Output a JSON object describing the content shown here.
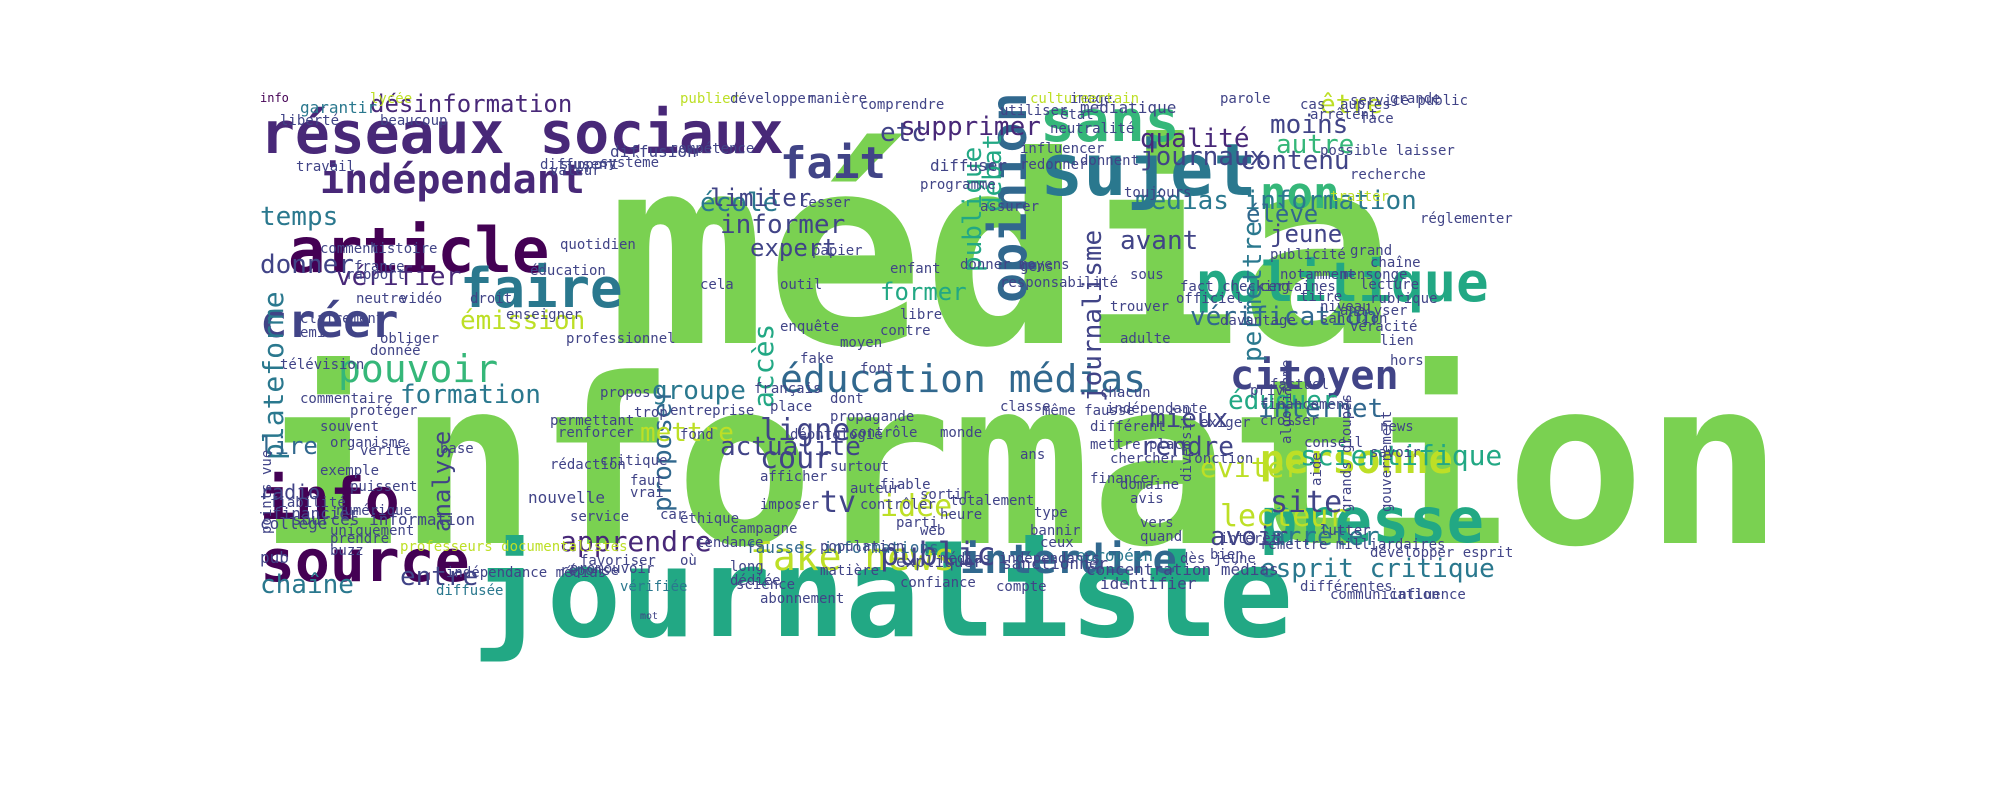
{
  "image": {
    "description_free": true
  },
  "colors": {
    "background": "#ffffff",
    "palette": [
      "#7ad151",
      "#22a884",
      "#2a788e",
      "#414487",
      "#440154",
      "#bddf26",
      "#35b779",
      "#fde725",
      "#31688e",
      "#482878"
    ]
  },
  "words": [
    {
      "text": "information",
      "color": "#7ad151"
    },
    {
      "text": "média",
      "color": "#7ad151"
    },
    {
      "text": "journaliste",
      "color": "#22a884"
    },
    {
      "text": "réseaux sociaux",
      "color": "#482878"
    },
    {
      "text": "sujet",
      "color": "#2a788e"
    },
    {
      "text": "article",
      "color": "#440154"
    },
    {
      "text": "politique",
      "color": "#22a884"
    },
    {
      "text": "presse",
      "color": "#22a884"
    },
    {
      "text": "info",
      "color": "#440154"
    },
    {
      "text": "source",
      "color": "#440154"
    },
    {
      "text": "sans",
      "color": "#35b779"
    },
    {
      "text": "faire",
      "color": "#2a788e"
    },
    {
      "text": "opinion",
      "color": "#31688e"
    },
    {
      "text": "fait",
      "color": "#414487"
    },
    {
      "text": "non",
      "color": "#35b779"
    },
    {
      "text": "créer",
      "color": "#414487"
    },
    {
      "text": "indépendant",
      "color": "#482878"
    },
    {
      "text": "pouvoir",
      "color": "#35b779"
    },
    {
      "text": "éducation médias",
      "color": "#31688e"
    },
    {
      "text": "fake news",
      "color": "#bddf26"
    },
    {
      "text": "interdire",
      "color": "#31688e"
    },
    {
      "text": "citoyen",
      "color": "#414487"
    },
    {
      "text": "personne",
      "color": "#bddf26"
    },
    {
      "text": "désinformation",
      "color": "#482878"
    },
    {
      "text": "journaux",
      "color": "#414487"
    },
    {
      "text": "qualité",
      "color": "#482878"
    },
    {
      "text": "moins",
      "color": "#414487"
    },
    {
      "text": "contenu",
      "color": "#414487"
    },
    {
      "text": "supprimer",
      "color": "#482878"
    },
    {
      "text": "médias information",
      "color": "#2a788e"
    },
    {
      "text": "vérification",
      "color": "#31688e"
    },
    {
      "text": "école",
      "color": "#2a788e"
    },
    {
      "text": "temps",
      "color": "#2a788e"
    },
    {
      "text": "informer",
      "color": "#414487"
    },
    {
      "text": "donner",
      "color": "#414487"
    },
    {
      "text": "expert",
      "color": "#414487"
    },
    {
      "text": "vérifier",
      "color": "#482878"
    },
    {
      "text": "émission",
      "color": "#bddf26"
    },
    {
      "text": "autre",
      "color": "#35b779"
    },
    {
      "text": "élève",
      "color": "#31688e"
    },
    {
      "text": "avant",
      "color": "#414487"
    },
    {
      "text": "jeune",
      "color": "#414487"
    },
    {
      "text": "éduquer",
      "color": "#22a884"
    },
    {
      "text": "internet",
      "color": "#31688e"
    },
    {
      "text": "mieux",
      "color": "#414487"
    },
    {
      "text": "éviter",
      "color": "#bddf26"
    },
    {
      "text": "ligne",
      "color": "#414487"
    },
    {
      "text": "cour",
      "color": "#414487"
    },
    {
      "text": "groupe",
      "color": "#2a788e"
    },
    {
      "text": "formation",
      "color": "#2a788e"
    },
    {
      "text": "plateforme",
      "color": "#2a788e"
    },
    {
      "text": "analyse",
      "color": "#414487"
    },
    {
      "text": "proposer",
      "color": "#31688e"
    },
    {
      "text": "mettre",
      "color": "#bddf26"
    },
    {
      "text": "actualité",
      "color": "#414487"
    },
    {
      "text": "idée",
      "color": "#bddf26"
    },
    {
      "text": "lecteur",
      "color": "#bddf26"
    },
    {
      "text": "site",
      "color": "#414487"
    },
    {
      "text": "avoir",
      "color": "#414487"
    },
    {
      "text": "scientifique",
      "color": "#22a884"
    },
    {
      "text": "esprit critique",
      "color": "#2a788e"
    },
    {
      "text": "arrêter",
      "color": "#2a788e"
    },
    {
      "text": "apprendre",
      "color": "#482878"
    },
    {
      "text": "public",
      "color": "#414487"
    },
    {
      "text": "lire",
      "color": "#31688e"
    },
    {
      "text": "chaîne",
      "color": "#2a788e"
    },
    {
      "text": "entre",
      "color": "#414487"
    },
    {
      "text": "tv",
      "color": "#414487"
    },
    {
      "text": "rendre",
      "color": "#414487"
    },
    {
      "text": "débat",
      "color": "#22a884"
    },
    {
      "text": "publique",
      "color": "#22a884"
    },
    {
      "text": "permettre",
      "color": "#2a788e"
    },
    {
      "text": "journalisme",
      "color": "#414487"
    },
    {
      "text": "accès",
      "color": "#22a884"
    },
    {
      "text": "etc",
      "color": "#414487"
    },
    {
      "text": "être",
      "color": "#bddf26"
    },
    {
      "text": "limiter",
      "color": "#414487"
    },
    {
      "text": "former",
      "color": "#22a884"
    },
    {
      "text": "radio",
      "color": "#414487"
    },
    {
      "text": "info",
      "color": "#440154"
    },
    {
      "text": "sources information",
      "color": "#414487"
    },
    {
      "text": "professeurs documentalistes",
      "color": "#bddf26"
    },
    {
      "text": "fausses informations",
      "color": "#31688e"
    },
    {
      "text": "concentration médias",
      "color": "#414487"
    },
    {
      "text": "confiance",
      "color": "#414487"
    },
    {
      "text": "compte",
      "color": "#414487"
    },
    {
      "text": "identifier",
      "color": "#414487"
    },
    {
      "text": "science",
      "color": "#414487"
    },
    {
      "text": "vérifiée",
      "color": "#2a788e"
    },
    {
      "text": "diffusée",
      "color": "#2a788e"
    },
    {
      "text": "financier",
      "color": "#414487"
    },
    {
      "text": "collège",
      "color": "#414487"
    },
    {
      "text": "pub",
      "color": "#414487"
    },
    {
      "text": "expliquer",
      "color": "#414487"
    },
    {
      "text": "sanctionner",
      "color": "#414487"
    },
    {
      "text": "européen",
      "color": "#2a788e"
    },
    {
      "text": "nouvelle",
      "color": "#414487"
    },
    {
      "text": "mot",
      "color": "#414487"
    },
    {
      "text": "garantir",
      "color": "#2a788e"
    },
    {
      "text": "lycée",
      "color": "#bddf26"
    },
    {
      "text": "publier",
      "color": "#bddf26"
    },
    {
      "text": "développer",
      "color": "#414487"
    },
    {
      "text": "manière",
      "color": "#414487"
    },
    {
      "text": "diffuser",
      "color": "#414487"
    },
    {
      "text": "programme",
      "color": "#414487"
    },
    {
      "text": "utiliser",
      "color": "#414487"
    },
    {
      "text": "culture",
      "color": "#bddf26"
    },
    {
      "text": "parole",
      "color": "#414487"
    },
    {
      "text": "grande",
      "color": "#414487"
    },
    {
      "text": "service public",
      "color": "#414487"
    },
    {
      "text": "arrêtent",
      "color": "#414487"
    },
    {
      "text": "possible laisser",
      "color": "#414487"
    },
    {
      "text": "diffusion",
      "color": "#414487"
    },
    {
      "text": "travail",
      "color": "#414487"
    },
    {
      "text": "comprendre",
      "color": "#414487"
    },
    {
      "text": "médiatique",
      "color": "#414487"
    },
    {
      "text": "image",
      "color": "#414487"
    },
    {
      "text": "certain",
      "color": "#bddf26"
    },
    {
      "text": "état",
      "color": "#414487"
    },
    {
      "text": "cesser",
      "color": "#414487"
    },
    {
      "text": "assurer",
      "color": "#414487"
    },
    {
      "text": "toujours",
      "color": "#414487"
    },
    {
      "text": "recherche",
      "color": "#414487"
    },
    {
      "text": "traiter",
      "color": "#bddf26"
    },
    {
      "text": "grand",
      "color": "#414487"
    },
    {
      "text": "notamment",
      "color": "#414487"
    },
    {
      "text": "mensonge",
      "color": "#414487"
    },
    {
      "text": "niveau",
      "color": "#414487"
    },
    {
      "text": "véracité",
      "color": "#414487"
    },
    {
      "text": "lien",
      "color": "#414487"
    },
    {
      "text": "aide",
      "color": "#414487"
    },
    {
      "text": "fiable",
      "color": "#414487"
    },
    {
      "text": "surtout",
      "color": "#414487"
    },
    {
      "text": "contrôler",
      "color": "#414487"
    },
    {
      "text": "auteur",
      "color": "#414487"
    },
    {
      "text": "heure",
      "color": "#414487"
    },
    {
      "text": "web",
      "color": "#414487"
    },
    {
      "text": "quand",
      "color": "#414487"
    },
    {
      "text": "vers",
      "color": "#414487"
    },
    {
      "text": "dès jeune",
      "color": "#414487"
    },
    {
      "text": "ceux",
      "color": "#414487"
    },
    {
      "text": "type",
      "color": "#414487"
    },
    {
      "text": "bien",
      "color": "#414487"
    },
    {
      "text": "lutter",
      "color": "#414487"
    },
    {
      "text": "savoir",
      "color": "#414487"
    },
    {
      "text": "gouvernement",
      "color": "#414487"
    },
    {
      "text": "grands groupes",
      "color": "#414487"
    },
    {
      "text": "financement",
      "color": "#414487"
    },
    {
      "text": "exiger",
      "color": "#414487"
    },
    {
      "text": "privé",
      "color": "#414487"
    },
    {
      "text": "algorithme",
      "color": "#414487"
    },
    {
      "text": "diversité",
      "color": "#414487"
    },
    {
      "text": "factuel",
      "color": "#414487"
    },
    {
      "text": "hors",
      "color": "#414487"
    },
    {
      "text": "news",
      "color": "#414487"
    },
    {
      "text": "emi",
      "color": "#414487"
    },
    {
      "text": "télévision",
      "color": "#414487"
    },
    {
      "text": "obliger",
      "color": "#414487"
    },
    {
      "text": "donnée",
      "color": "#414487"
    },
    {
      "text": "commentaire",
      "color": "#414487"
    },
    {
      "text": "protéger",
      "color": "#414487"
    },
    {
      "text": "souvent",
      "color": "#414487"
    },
    {
      "text": "organisme",
      "color": "#414487"
    },
    {
      "text": "exemple",
      "color": "#414487"
    },
    {
      "text": "puissent",
      "color": "#414487"
    },
    {
      "text": "numérique",
      "color": "#414487"
    },
    {
      "text": "uniquement",
      "color": "#414487"
    },
    {
      "text": "points vue",
      "color": "#414487"
    },
    {
      "text": "vidéo",
      "color": "#414487"
    },
    {
      "text": "droit",
      "color": "#414487"
    },
    {
      "text": "enseigner",
      "color": "#414487"
    },
    {
      "text": "neutre",
      "color": "#414487"
    },
    {
      "text": "france",
      "color": "#414487"
    },
    {
      "text": "éducation",
      "color": "#414487"
    },
    {
      "text": "professionnel",
      "color": "#414487"
    },
    {
      "text": "outil",
      "color": "#414487"
    },
    {
      "text": "papier",
      "color": "#414487"
    },
    {
      "text": "libre",
      "color": "#414487"
    },
    {
      "text": "moyen",
      "color": "#414487"
    },
    {
      "text": "contre",
      "color": "#414487"
    },
    {
      "text": "donner moyens",
      "color": "#414487"
    },
    {
      "text": "place",
      "color": "#414487"
    },
    {
      "text": "dont",
      "color": "#414487"
    },
    {
      "text": "propos",
      "color": "#414487"
    },
    {
      "text": "trop",
      "color": "#414487"
    },
    {
      "text": "français",
      "color": "#414487"
    },
    {
      "text": "propagande",
      "color": "#414487"
    },
    {
      "text": "contrôle",
      "color": "#414487"
    },
    {
      "text": "entreprise",
      "color": "#414487"
    },
    {
      "text": "monde",
      "color": "#414487"
    },
    {
      "text": "classe",
      "color": "#414487"
    },
    {
      "text": "même fausse",
      "color": "#414487"
    },
    {
      "text": "différent",
      "color": "#414487"
    },
    {
      "text": "indépendante",
      "color": "#414487"
    },
    {
      "text": "mettre place",
      "color": "#414487"
    },
    {
      "text": "chacun",
      "color": "#414487"
    },
    {
      "text": "conseil",
      "color": "#414487"
    },
    {
      "text": "adulte",
      "color": "#414487"
    },
    {
      "text": "trouver",
      "color": "#414487"
    },
    {
      "text": "domaine",
      "color": "#414487"
    },
    {
      "text": "financer",
      "color": "#414487"
    },
    {
      "text": "ans",
      "color": "#414487"
    },
    {
      "text": "déontologie",
      "color": "#414487"
    },
    {
      "text": "rédaction",
      "color": "#414487"
    },
    {
      "text": "faut",
      "color": "#414487"
    },
    {
      "text": "vrai",
      "color": "#414487"
    },
    {
      "text": "critique",
      "color": "#414487"
    },
    {
      "text": "renforcer",
      "color": "#414487"
    },
    {
      "text": "fond",
      "color": "#414487"
    },
    {
      "text": "permettant",
      "color": "#414487"
    },
    {
      "text": "afficher",
      "color": "#414487"
    },
    {
      "text": "imposer",
      "color": "#414487"
    },
    {
      "text": "car",
      "color": "#414487"
    },
    {
      "text": "service",
      "color": "#414487"
    },
    {
      "text": "avis",
      "color": "#414487"
    },
    {
      "text": "chercher fonction",
      "color": "#414487"
    },
    {
      "text": "parti",
      "color": "#414487"
    },
    {
      "text": "campagne",
      "color": "#414487"
    },
    {
      "text": "tendance",
      "color": "#414487"
    },
    {
      "text": "promouvoir",
      "color": "#414487"
    },
    {
      "text": "où",
      "color": "#414487"
    },
    {
      "text": "long",
      "color": "#414487"
    },
    {
      "text": "éthique",
      "color": "#414487"
    },
    {
      "text": "indépendance médias",
      "color": "#414487"
    },
    {
      "text": "favoriser",
      "color": "#414487"
    },
    {
      "text": "matière",
      "color": "#414487"
    },
    {
      "text": "dédiée",
      "color": "#414487"
    },
    {
      "text": "enquête",
      "color": "#414487"
    },
    {
      "text": "fake",
      "color": "#414487"
    },
    {
      "text": "enfant",
      "color": "#414487"
    },
    {
      "text": "font",
      "color": "#414487"
    },
    {
      "text": "cela",
      "color": "#414487"
    },
    {
      "text": "support",
      "color": "#414487"
    },
    {
      "text": "système",
      "color": "#414487"
    },
    {
      "text": "compétence",
      "color": "#414487"
    },
    {
      "text": "diffusent",
      "color": "#414487"
    },
    {
      "text": "beaucoup",
      "color": "#414487"
    },
    {
      "text": "liberté",
      "color": "#414487"
    },
    {
      "text": "influencer",
      "color": "#414487"
    },
    {
      "text": "redonner",
      "color": "#414487"
    },
    {
      "text": "donnent",
      "color": "#414487"
    },
    {
      "text": "neutralité",
      "color": "#414487"
    },
    {
      "text": "histoire",
      "color": "#414487"
    },
    {
      "text": "comment",
      "color": "#414487"
    },
    {
      "text": "rapport",
      "color": "#414487"
    },
    {
      "text": "buzz",
      "color": "#414487"
    },
    {
      "text": "prendre",
      "color": "#414487"
    },
    {
      "text": "vérité",
      "color": "#414487"
    },
    {
      "text": "fiabilité",
      "color": "#414487"
    },
    {
      "text": "base",
      "color": "#414487"
    },
    {
      "text": "certaines",
      "color": "#414487"
    },
    {
      "text": "publicité",
      "color": "#414487"
    },
    {
      "text": "lecture",
      "color": "#414487"
    },
    {
      "text": "rubrique",
      "color": "#414487"
    },
    {
      "text": "titre",
      "color": "#414487"
    },
    {
      "text": "chaîne",
      "color": "#414487"
    },
    {
      "text": "analyser",
      "color": "#414487"
    },
    {
      "text": "sanction",
      "color": "#414487"
    },
    {
      "text": "davantage",
      "color": "#414487"
    },
    {
      "text": "officiel",
      "color": "#414487"
    },
    {
      "text": "fact checking",
      "color": "#414487"
    },
    {
      "text": "médias indépendants",
      "color": "#414487"
    },
    {
      "text": "remettre milliardaires",
      "color": "#414487"
    },
    {
      "text": "différentes",
      "color": "#414487"
    },
    {
      "text": "communication",
      "color": "#414487"
    },
    {
      "text": "influence",
      "color": "#414487"
    },
    {
      "text": "développer esprit",
      "color": "#414487"
    },
    {
      "text": "abonnement",
      "color": "#414487"
    },
    {
      "text": "population",
      "color": "#414487"
    },
    {
      "text": "sortir",
      "color": "#414487"
    },
    {
      "text": "totalement",
      "color": "#414487"
    },
    {
      "text": "bannir",
      "color": "#414487"
    },
    {
      "text": "réponse",
      "color": "#414487"
    },
    {
      "text": "intérêt",
      "color": "#414487"
    },
    {
      "text": "croiser",
      "color": "#414487"
    },
    {
      "text": "face",
      "color": "#414487"
    },
    {
      "text": "sous",
      "color": "#414487"
    },
    {
      "text": "gens",
      "color": "#414487"
    },
    {
      "text": "responsabilité",
      "color": "#414487"
    },
    {
      "text": "cas",
      "color": "#414487"
    },
    {
      "text": "auprès",
      "color": "#414487"
    },
    {
      "text": "clairement",
      "color": "#414487"
    },
    {
      "text": "quotidien",
      "color": "#414487"
    },
    {
      "text": "valeur",
      "color": "#414487"
    },
    {
      "text": "réglementer",
      "color": "#414487"
    }
  ]
}
